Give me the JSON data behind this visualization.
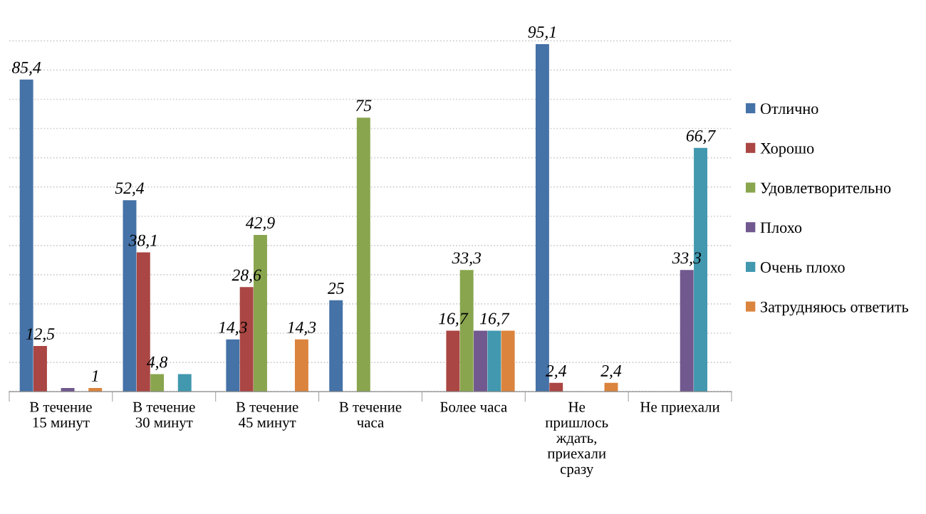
{
  "chart_data": {
    "type": "bar",
    "categories": [
      "В течение\n15 минут",
      "В течение\n30 минут",
      "В течение\n45 минут",
      "В течение\nчаса",
      "Более часа",
      "Не\nпришлось\nждать,\nприехали\nсразу",
      "Не приехали"
    ],
    "series": [
      {
        "name": "Отлично",
        "color": "#4572a7",
        "values": [
          85.4,
          52.4,
          14.3,
          25,
          null,
          95.1,
          null
        ],
        "value_labels": [
          "85,4",
          "52,4",
          "14,3",
          "25",
          null,
          "95,1",
          null
        ]
      },
      {
        "name": "Хорошо",
        "color": "#aa4643",
        "values": [
          12.5,
          38.1,
          28.6,
          null,
          16.7,
          2.4,
          null
        ],
        "value_labels": [
          "12,5",
          "38,1",
          "28,6",
          null,
          "16,7",
          "2,4",
          null
        ]
      },
      {
        "name": "Удовлетворительно",
        "color": "#89a54e",
        "values": [
          null,
          4.8,
          42.9,
          75,
          33.3,
          null,
          null
        ],
        "value_labels": [
          null,
          "4,8",
          "42,9",
          "75",
          "33,3",
          null,
          null
        ]
      },
      {
        "name": "Плохо",
        "color": "#71588f",
        "values": [
          1,
          null,
          null,
          null,
          16.7,
          null,
          33.3
        ],
        "value_labels": [
          null,
          null,
          null,
          null,
          null,
          null,
          "33,3"
        ]
      },
      {
        "name": "Очень плохо",
        "color": "#4198af",
        "values": [
          null,
          4.8,
          null,
          null,
          16.7,
          null,
          66.7
        ],
        "value_labels": [
          null,
          null,
          null,
          null,
          "16,7",
          null,
          "66,7"
        ]
      },
      {
        "name": "Затрудняюсь ответить",
        "color": "#db843d",
        "values": [
          1,
          null,
          14.3,
          null,
          16.7,
          2.4,
          null
        ],
        "value_labels": [
          "1",
          null,
          "14,3",
          null,
          null,
          "2,4",
          null
        ]
      }
    ],
    "yticks": [
      {
        "value": 0,
        "label": null
      },
      {
        "value": 8,
        "label": null
      },
      {
        "value": 16,
        "label": null
      },
      {
        "value": 24,
        "label": null
      },
      {
        "value": 32,
        "label": null
      },
      {
        "value": 40,
        "label": null
      },
      {
        "value": 48,
        "label": null
      },
      {
        "value": 56,
        "label": null
      },
      {
        "value": 64,
        "label": null
      },
      {
        "value": 72,
        "label": null
      },
      {
        "value": 80,
        "label": null
      },
      {
        "value": 88,
        "label": null
      },
      {
        "value": 96,
        "label": null
      }
    ],
    "grid": "y",
    "legend": "right",
    "tick_labels": "x"
  }
}
